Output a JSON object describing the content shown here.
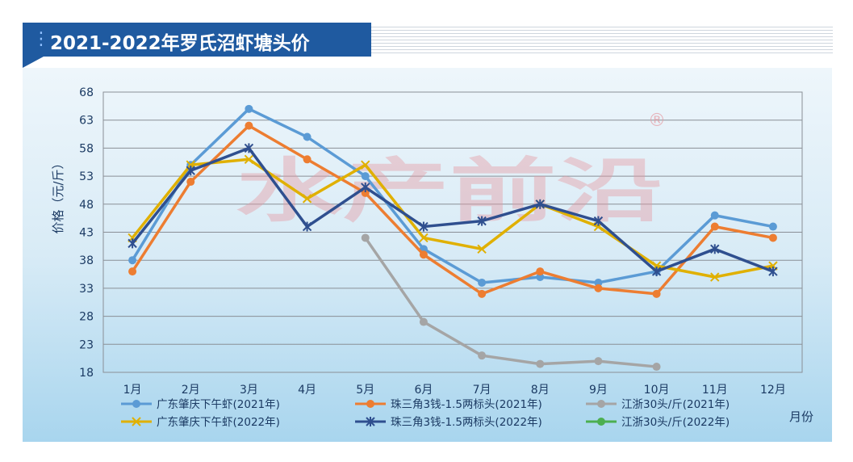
{
  "header": {
    "title": "2021-2022年罗氏沼虾塘头价"
  },
  "watermark": {
    "text": "水产前沿",
    "registered": "®"
  },
  "chart_data": {
    "type": "line",
    "categories": [
      "1月",
      "2月",
      "3月",
      "4月",
      "5月",
      "6月",
      "7月",
      "8月",
      "9月",
      "10月",
      "11月",
      "12月"
    ],
    "ylabel": "价格（元/斤）",
    "xlabel": "月份",
    "ylim": [
      18,
      68
    ],
    "yticks": [
      18,
      23,
      28,
      33,
      38,
      43,
      48,
      53,
      58,
      63,
      68
    ],
    "grid": true,
    "legend_position": "bottom",
    "series": [
      {
        "name": "广东肇庆下午虾(2021年)",
        "color": "#5b9bd5",
        "marker": "circle",
        "values": [
          38,
          55,
          65,
          60,
          53,
          40,
          34,
          35,
          34,
          36,
          46,
          44
        ]
      },
      {
        "name": "珠三角3钱-1.5两标头(2021年)",
        "color": "#ed7d31",
        "marker": "circle",
        "values": [
          36,
          52,
          62,
          56,
          50,
          39,
          32,
          36,
          33,
          32,
          44,
          42
        ]
      },
      {
        "name": "江浙30头/斤(2021年)",
        "color": "#a5a5a5",
        "marker": "circle",
        "values": [
          null,
          null,
          null,
          null,
          42,
          27,
          21,
          19.5,
          20,
          19,
          null,
          null
        ]
      },
      {
        "name": "广东肇庆下午虾(2022年)",
        "color": "#e0b000",
        "marker": "x",
        "values": [
          42,
          55,
          56,
          49,
          55,
          42,
          40,
          48,
          44,
          37,
          35,
          37
        ]
      },
      {
        "name": "珠三角3钱-1.5两标头(2022年)",
        "color": "#2f4f8f",
        "marker": "star",
        "values": [
          41,
          54,
          58,
          44,
          51,
          44,
          45,
          48,
          45,
          36,
          40,
          36
        ]
      },
      {
        "name": "江浙30头/斤(2022年)",
        "color": "#4caf50",
        "marker": "circle",
        "values": [
          null,
          null,
          null,
          null,
          null,
          null,
          null,
          null,
          null,
          null,
          null,
          null
        ]
      }
    ]
  }
}
